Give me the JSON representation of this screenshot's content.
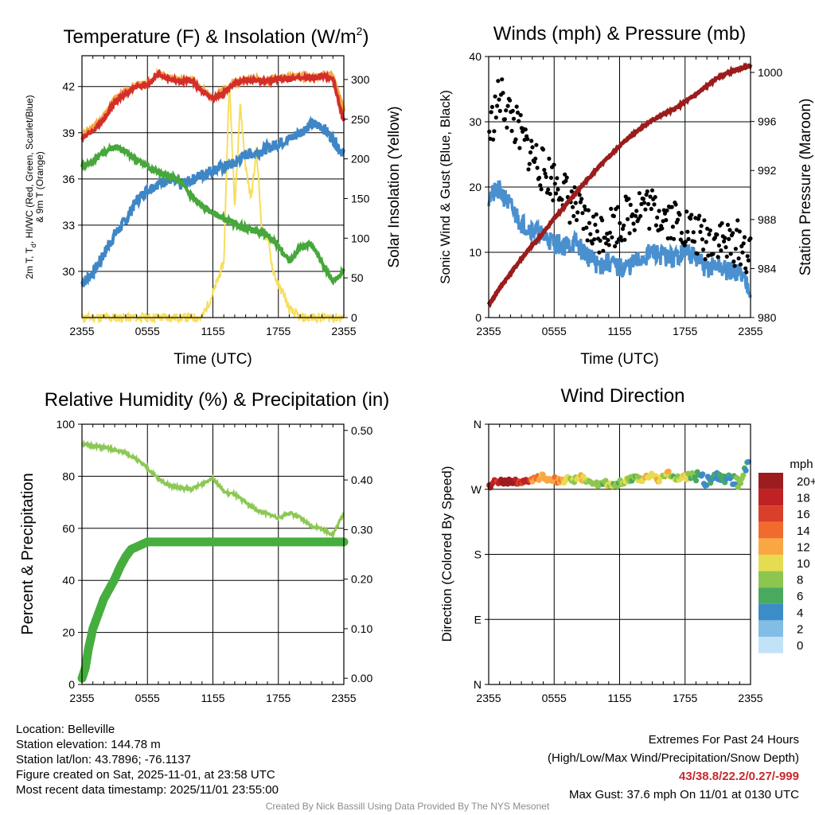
{
  "chart_data": [
    {
      "type": "line",
      "title_main": "Temperature (F) & Insolation (W/m",
      "title_sup": "2",
      "title_close": ")",
      "xlabel": "Time (UTC)",
      "ylabel_lines": [
        "2m T, T",
        "d",
        ", HI/WC (Red, Green, Scarlet/Blue)",
        "& 9m T (Orange)"
      ],
      "y2label": "Solar Insolation (Yellow)",
      "xticks": [
        "2355",
        "0555",
        "1155",
        "1755",
        "2355"
      ],
      "xlim": [
        0,
        24
      ],
      "ylim": [
        27,
        44
      ],
      "yticks": [
        "30",
        "33",
        "36",
        "39",
        "42"
      ],
      "yticks_values": [
        30,
        33,
        36,
        39,
        42
      ],
      "y2lim": [
        0,
        330
      ],
      "y2ticks": [
        "0",
        "50",
        "100",
        "150",
        "200",
        "250",
        "300"
      ],
      "y2ticks_values": [
        0,
        50,
        100,
        150,
        200,
        250,
        300
      ],
      "series": [
        {
          "name": "9m T",
          "color": "#f4a742",
          "x": [
            0,
            1,
            2,
            3,
            4,
            5,
            6,
            7,
            8,
            9,
            10,
            11,
            12,
            13,
            14,
            15,
            16,
            17,
            18,
            19,
            20,
            21,
            22,
            23,
            24
          ],
          "values": [
            38.9,
            39.3,
            40.1,
            41.2,
            41.6,
            42.1,
            42.2,
            42.9,
            42.6,
            42.4,
            42.5,
            41.8,
            41.3,
            41.7,
            42.3,
            42.4,
            42.5,
            42.4,
            42.6,
            42.6,
            42.7,
            42.6,
            42.8,
            42.6,
            40.5
          ]
        },
        {
          "name": "2m T",
          "color": "#d42e2a",
          "x": [
            0,
            1,
            2,
            3,
            4,
            5,
            6,
            7,
            8,
            9,
            10,
            11,
            12,
            13,
            14,
            15,
            16,
            17,
            18,
            19,
            20,
            21,
            22,
            23,
            24
          ],
          "values": [
            38.7,
            39.1,
            39.9,
            41.0,
            41.5,
            42.0,
            42.1,
            42.8,
            42.5,
            42.3,
            42.4,
            41.7,
            41.2,
            41.6,
            42.2,
            42.4,
            42.4,
            42.3,
            42.5,
            42.5,
            42.6,
            42.5,
            42.7,
            42.5,
            39.7
          ]
        },
        {
          "name": "Td",
          "color": "#46a73a",
          "x": [
            0,
            1,
            2,
            3,
            4,
            5,
            6,
            7,
            8,
            9,
            10,
            11,
            12,
            13,
            14,
            15,
            16,
            17,
            18,
            19,
            20,
            21,
            22,
            23,
            24
          ],
          "values": [
            36.8,
            37.1,
            37.7,
            38.1,
            37.8,
            37.3,
            36.8,
            36.4,
            36.2,
            35.8,
            34.9,
            34.2,
            33.8,
            33.4,
            33.1,
            32.8,
            32.6,
            32.4,
            31.6,
            30.6,
            31.6,
            31.8,
            30.5,
            29.4,
            30.0
          ]
        },
        {
          "name": "WC",
          "color": "#3f86c6",
          "x": [
            0,
            1,
            2,
            3,
            4,
            5,
            6,
            7,
            8,
            9,
            10,
            11,
            12,
            13,
            14,
            15,
            16,
            17,
            18,
            19,
            20,
            21,
            22,
            23,
            24
          ],
          "values": [
            29.2,
            29.9,
            31.1,
            32.4,
            33.3,
            34.6,
            35.3,
            35.7,
            36.0,
            35.6,
            35.9,
            36.3,
            36.6,
            36.8,
            37.0,
            37.6,
            37.7,
            38.0,
            38.3,
            38.6,
            39.0,
            39.6,
            39.4,
            38.6,
            37.6
          ]
        },
        {
          "name": "Solar Insolation",
          "axis": "right",
          "color": "#f7dd5c",
          "x": [
            0,
            1,
            2,
            3,
            4,
            5,
            6,
            7,
            8,
            9,
            10,
            11,
            12,
            13,
            13.5,
            14,
            14.5,
            15,
            15.5,
            16,
            16.5,
            17,
            17.5,
            18,
            18.5,
            19,
            20,
            21,
            24
          ],
          "values": [
            0,
            0,
            0,
            0,
            0,
            0,
            0,
            0,
            0,
            0,
            0,
            0,
            30,
            70,
            300,
            140,
            270,
            190,
            150,
            210,
            110,
            100,
            60,
            40,
            30,
            10,
            0,
            0,
            0
          ]
        }
      ]
    },
    {
      "type": "line",
      "title": "Winds (mph) & Pressure (mb)",
      "xlabel": "Time (UTC)",
      "ylabel": "Sonic Wind & Gust (Blue, Black)",
      "y2label": "Station Pressure (Maroon)",
      "xticks": [
        "2355",
        "0555",
        "1155",
        "1755",
        "2355"
      ],
      "xlim": [
        0,
        24
      ],
      "ylim": [
        0,
        40
      ],
      "yticks": [
        "0",
        "10",
        "20",
        "30",
        "40"
      ],
      "yticks_values": [
        0,
        10,
        20,
        30,
        40
      ],
      "y2lim": [
        980,
        1001.3
      ],
      "y2ticks": [
        "980",
        "984",
        "988",
        "992",
        "996",
        "1000"
      ],
      "y2ticks_values": [
        980,
        984,
        988,
        992,
        996,
        1000
      ],
      "series": [
        {
          "name": "Sonic Wind",
          "color": "#4a90cf",
          "x": [
            0,
            1,
            2,
            3,
            4,
            5,
            6,
            7,
            8,
            9,
            10,
            11,
            12,
            13,
            14,
            15,
            16,
            17,
            18,
            19,
            20,
            21,
            22,
            23,
            24
          ],
          "values": [
            18.5,
            19.5,
            17.0,
            14.5,
            13.5,
            12.5,
            11.5,
            11.0,
            11.5,
            9.5,
            8.0,
            8.5,
            7.5,
            8.0,
            9.0,
            10.0,
            9.5,
            9.0,
            10.5,
            9.0,
            7.5,
            8.0,
            7.0,
            7.0,
            4.5
          ]
        },
        {
          "name": "Gust",
          "style": "dots",
          "color": "#000000",
          "x": [
            0,
            1,
            2,
            3,
            4,
            5,
            6,
            7,
            8,
            9,
            10,
            11,
            12,
            13,
            14,
            15,
            16,
            17,
            18,
            19,
            20,
            21,
            22,
            23,
            24
          ],
          "values": [
            28.0,
            34.0,
            31.0,
            27.5,
            25.0,
            22.5,
            21.0,
            19.0,
            16.5,
            14.0,
            13.0,
            14.0,
            14.5,
            16.0,
            17.5,
            16.5,
            16.0,
            15.0,
            14.0,
            12.5,
            12.0,
            12.5,
            11.0,
            11.5,
            9.0
          ]
        },
        {
          "name": "Station Pressure",
          "axis": "right",
          "color": "#9b1c1c",
          "x": [
            0,
            1,
            2,
            3,
            4,
            5,
            6,
            7,
            8,
            9,
            10,
            11,
            12,
            13,
            14,
            15,
            16,
            17,
            18,
            19,
            20,
            21,
            22,
            23,
            24
          ],
          "values": [
            981.0,
            982.4,
            983.6,
            984.8,
            985.9,
            986.9,
            988.1,
            989.1,
            990.2,
            991.2,
            992.2,
            993.1,
            994.0,
            994.8,
            995.5,
            996.1,
            996.6,
            997.0,
            997.6,
            998.2,
            998.9,
            999.6,
            1000.0,
            1000.3,
            1000.6
          ]
        }
      ]
    },
    {
      "type": "line",
      "title": "Relative Humidity (%) & Precipitation (in)",
      "xlabel": "",
      "ylabel": "Percent & Precipitation",
      "xticks": [
        "2355",
        "0555",
        "1155",
        "1755",
        "2355"
      ],
      "xlim": [
        0,
        24
      ],
      "ylim": [
        0,
        100
      ],
      "yticks": [
        "0",
        "20",
        "40",
        "60",
        "80",
        "100"
      ],
      "yticks_values": [
        0,
        20,
        40,
        60,
        80,
        100
      ],
      "y2lim": [
        -0.0125,
        0.5125
      ],
      "y2ticks": [
        "0.00",
        "0.10",
        "0.20",
        "0.30",
        "0.40",
        "0.50"
      ],
      "y2ticks_values": [
        0,
        0.1,
        0.2,
        0.3,
        0.4,
        0.5
      ],
      "series": [
        {
          "name": "Relative Humidity",
          "color": "#8cc854",
          "x": [
            0,
            1,
            2,
            3,
            4,
            5,
            6,
            7,
            8,
            9,
            10,
            11,
            12,
            13,
            14,
            15,
            16,
            17,
            18,
            19,
            20,
            21,
            22,
            23,
            24
          ],
          "values": [
            92.5,
            91.5,
            91.0,
            90.0,
            89.0,
            86.5,
            83.0,
            79.0,
            76.5,
            75.5,
            75.0,
            77.0,
            79.5,
            74.0,
            73.0,
            70.0,
            67.0,
            65.5,
            64.0,
            66.0,
            64.0,
            61.0,
            60.0,
            57.5,
            66.0
          ]
        },
        {
          "name": "Precipitation",
          "axis": "right",
          "style": "thick",
          "color": "#46ae3e",
          "x": [
            0,
            0.3,
            0.6,
            1,
            1.5,
            2,
            2.5,
            3,
            3.5,
            4,
            4.5,
            5,
            5.5,
            6,
            24
          ],
          "values": [
            0.0,
            0.02,
            0.06,
            0.1,
            0.13,
            0.16,
            0.18,
            0.2,
            0.225,
            0.245,
            0.26,
            0.265,
            0.27,
            0.275,
            0.275
          ]
        }
      ]
    },
    {
      "type": "scatter",
      "title": "Wind Direction",
      "xlabel": "",
      "ylabel": "Direction (Colored By Speed)",
      "xticks": [
        "2355",
        "0555",
        "1155",
        "1755",
        "2355"
      ],
      "xlim": [
        0,
        24
      ],
      "ylim": [
        0,
        360
      ],
      "yticks": [
        "N",
        "E",
        "S",
        "W",
        "N"
      ],
      "yticks_values": [
        0,
        90,
        180,
        270,
        360
      ],
      "legend_title": "mph",
      "legend_labels": [
        "20+",
        "18",
        "16",
        "14",
        "12",
        "10",
        "8",
        "6",
        "4",
        "2",
        "0"
      ],
      "legend_colors": [
        "#9d1c1f",
        "#bf2124",
        "#d93f2a",
        "#f26b2e",
        "#faa743",
        "#e6dc51",
        "#8dc64e",
        "#49a95f",
        "#3c8cc9",
        "#82bde6",
        "#c2e3f7"
      ],
      "points": [
        {
          "x": 0,
          "y": 274,
          "speed": 18
        },
        {
          "x": 0.5,
          "y": 279,
          "speed": 18
        },
        {
          "x": 1,
          "y": 280,
          "speed": 18
        },
        {
          "x": 1.5,
          "y": 279,
          "speed": 20
        },
        {
          "x": 2,
          "y": 281,
          "speed": 20
        },
        {
          "x": 2.5,
          "y": 280,
          "speed": 18
        },
        {
          "x": 3,
          "y": 282,
          "speed": 16
        },
        {
          "x": 3.5,
          "y": 281,
          "speed": 18
        },
        {
          "x": 4,
          "y": 283,
          "speed": 14
        },
        {
          "x": 4.5,
          "y": 286,
          "speed": 13
        },
        {
          "x": 5,
          "y": 288,
          "speed": 12
        },
        {
          "x": 5.5,
          "y": 282,
          "speed": 12
        },
        {
          "x": 6,
          "y": 284,
          "speed": 12
        },
        {
          "x": 6.5,
          "y": 281,
          "speed": 12
        },
        {
          "x": 7,
          "y": 282,
          "speed": 11
        },
        {
          "x": 7.5,
          "y": 285,
          "speed": 10
        },
        {
          "x": 8,
          "y": 283,
          "speed": 8
        },
        {
          "x": 8.5,
          "y": 286,
          "speed": 10
        },
        {
          "x": 9,
          "y": 282,
          "speed": 9
        },
        {
          "x": 9.5,
          "y": 279,
          "speed": 8
        },
        {
          "x": 10,
          "y": 276,
          "speed": 8
        },
        {
          "x": 10.5,
          "y": 281,
          "speed": 7
        },
        {
          "x": 11,
          "y": 277,
          "speed": 9
        },
        {
          "x": 11.5,
          "y": 274,
          "speed": 8
        },
        {
          "x": 12,
          "y": 279,
          "speed": 7
        },
        {
          "x": 12.5,
          "y": 281,
          "speed": 10
        },
        {
          "x": 13,
          "y": 283,
          "speed": 8
        },
        {
          "x": 13.5,
          "y": 285,
          "speed": 7
        },
        {
          "x": 14,
          "y": 282,
          "speed": 10
        },
        {
          "x": 14.5,
          "y": 286,
          "speed": 11
        },
        {
          "x": 15,
          "y": 290,
          "speed": 10
        },
        {
          "x": 15.5,
          "y": 283,
          "speed": 12
        },
        {
          "x": 16,
          "y": 288,
          "speed": 9
        },
        {
          "x": 16.5,
          "y": 291,
          "speed": 10
        },
        {
          "x": 17,
          "y": 284,
          "speed": 8
        },
        {
          "x": 17.5,
          "y": 287,
          "speed": 9
        },
        {
          "x": 18,
          "y": 286,
          "speed": 10
        },
        {
          "x": 18.5,
          "y": 289,
          "speed": 7
        },
        {
          "x": 19,
          "y": 290,
          "speed": 6
        },
        {
          "x": 19.5,
          "y": 286,
          "speed": 5
        },
        {
          "x": 20,
          "y": 278,
          "speed": 4
        },
        {
          "x": 20.5,
          "y": 288,
          "speed": 5
        },
        {
          "x": 21,
          "y": 285,
          "speed": 4
        },
        {
          "x": 21.5,
          "y": 283,
          "speed": 6
        },
        {
          "x": 22,
          "y": 287,
          "speed": 5
        },
        {
          "x": 22.5,
          "y": 282,
          "speed": 5
        },
        {
          "x": 23,
          "y": 278,
          "speed": 9
        },
        {
          "x": 23.5,
          "y": 298,
          "speed": 6
        },
        {
          "x": 23.6,
          "y": 303,
          "speed": 5
        },
        {
          "x": 23.8,
          "y": 309,
          "speed": 4
        }
      ]
    }
  ],
  "info": {
    "location": "Location: Belleville",
    "elevation": "Station elevation: 144.78 m",
    "latlon": "Station lat/lon: 43.7896; -76.1137",
    "created": "Figure created on Sat, 2025-11-01, at 23:58 UTC",
    "recent": "Most recent data timestamp: 2025/11/01 23:55:00"
  },
  "extremes": {
    "heading": "Extremes For Past 24 Hours",
    "subheading": "(High/Low/Max Wind/Precipitation/Snow Depth)",
    "values": "43/38.8/22.2/0.27/-999",
    "max_gust": "Max Gust: 37.6 mph On 11/01 at 0130 UTC"
  },
  "credit": "Created By Nick Bassill Using Data Provided By The NYS Mesonet"
}
